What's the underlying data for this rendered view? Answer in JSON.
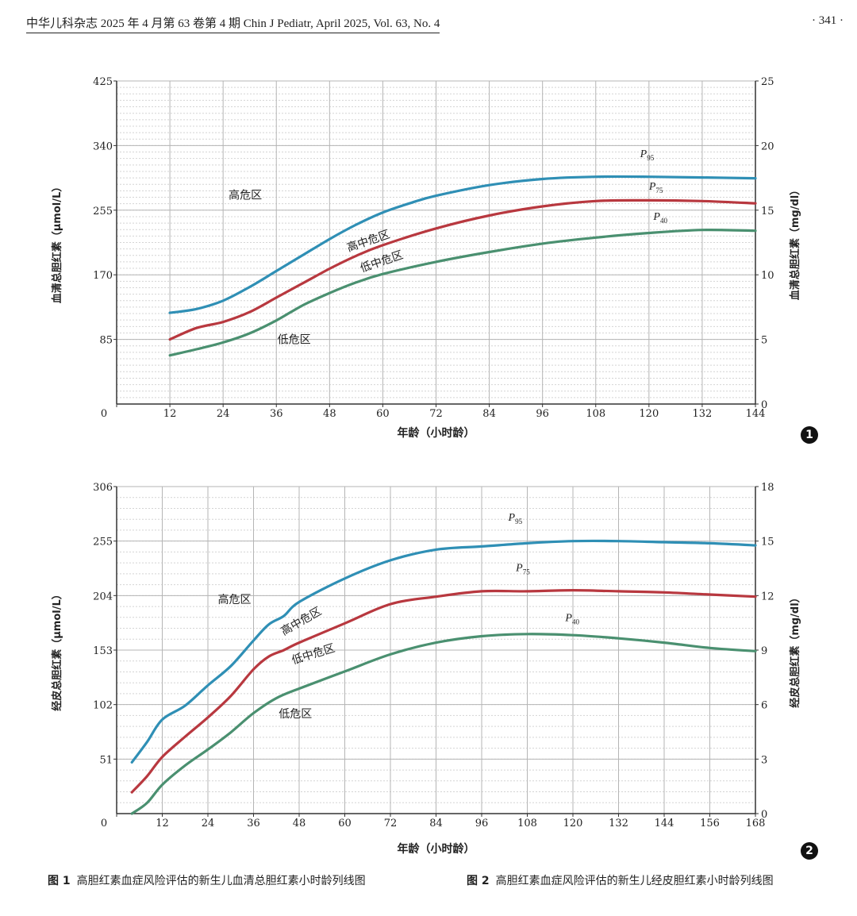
{
  "header": {
    "left": "中华儿科杂志 2025 年 4 月第 63 卷第 4 期   Chin J Pediatr, April 2025, Vol. 63, No. 4",
    "right": "· 341 ·"
  },
  "chart_data": [
    {
      "type": "line",
      "figure_label": "1",
      "xlabel": "年龄（小时龄）",
      "ylabel_left": "血清总胆红素（μmol/L）",
      "ylabel_right": "血清总胆红素（mg/dl）",
      "xlim": [
        0,
        144
      ],
      "ylim_left": [
        0,
        425
      ],
      "ylim_right": [
        0,
        25
      ],
      "x_ticks": [
        0,
        12,
        24,
        36,
        48,
        60,
        72,
        84,
        96,
        108,
        120,
        132,
        144
      ],
      "y_ticks_left": [
        85,
        170,
        255,
        340,
        425
      ],
      "y_ticks_right": [
        0,
        5,
        10,
        15,
        20,
        25
      ],
      "grid": true,
      "series": [
        {
          "name": "P95",
          "color": "#2f8fb5",
          "x": [
            12,
            18,
            24,
            30,
            36,
            42,
            48,
            54,
            60,
            66,
            72,
            84,
            96,
            108,
            120,
            132,
            144
          ],
          "y": [
            120,
            125,
            136,
            154,
            175,
            196,
            217,
            236,
            252,
            264,
            274,
            288,
            296,
            299,
            299,
            298,
            297
          ]
        },
        {
          "name": "P75",
          "color": "#b8383f",
          "x": [
            12,
            18,
            24,
            30,
            36,
            42,
            48,
            54,
            60,
            72,
            84,
            96,
            108,
            120,
            132,
            144
          ],
          "y": [
            85,
            100,
            108,
            121,
            140,
            159,
            178,
            195,
            209,
            231,
            248,
            260,
            267,
            268,
            267,
            264
          ]
        },
        {
          "name": "P40",
          "color": "#4a9070",
          "x": [
            12,
            18,
            24,
            30,
            36,
            42,
            48,
            54,
            60,
            72,
            84,
            96,
            108,
            120,
            132,
            144
          ],
          "y": [
            64,
            72,
            81,
            93,
            110,
            130,
            146,
            160,
            171,
            187,
            200,
            211,
            219,
            225,
            229,
            228
          ]
        }
      ],
      "series_labels": [
        {
          "base": "P",
          "sub": "95",
          "x": 118,
          "y": 325
        },
        {
          "base": "P",
          "sub": "75",
          "x": 120,
          "y": 282
        },
        {
          "base": "P",
          "sub": "40",
          "x": 121,
          "y": 242
        }
      ],
      "zone_labels": [
        {
          "text": "高危区",
          "x": 29,
          "y": 270,
          "rotate": 0
        },
        {
          "text": "高中危区",
          "x": 57,
          "y": 210,
          "rotate": -19
        },
        {
          "text": "低中危区",
          "x": 60,
          "y": 183,
          "rotate": -19
        },
        {
          "text": "低危区",
          "x": 40,
          "y": 80,
          "rotate": 0
        }
      ]
    },
    {
      "type": "line",
      "figure_label": "2",
      "xlabel": "年龄（小时龄）",
      "ylabel_left": "经皮总胆红素（μmol/L）",
      "ylabel_right": "经皮总胆红素（mg/dl）",
      "xlim": [
        0,
        168
      ],
      "ylim_left": [
        0,
        306
      ],
      "ylim_right": [
        0,
        18
      ],
      "x_ticks": [
        0,
        12,
        24,
        36,
        48,
        60,
        72,
        84,
        96,
        108,
        120,
        132,
        144,
        156,
        168
      ],
      "y_ticks_left": [
        51,
        102,
        153,
        204,
        255,
        306
      ],
      "y_ticks_right": [
        0,
        3,
        6,
        9,
        12,
        15,
        18
      ],
      "grid": true,
      "series": [
        {
          "name": "P95",
          "color": "#2f8fb5",
          "x": [
            4,
            8,
            12,
            18,
            24,
            30,
            36,
            40,
            44,
            48,
            60,
            72,
            84,
            96,
            108,
            120,
            132,
            144,
            156,
            168
          ],
          "y": [
            48,
            67,
            88,
            101,
            120,
            138,
            162,
            177,
            185,
            198,
            220,
            237,
            247,
            250,
            253,
            255,
            255,
            254,
            253,
            251
          ]
        },
        {
          "name": "P75",
          "color": "#b8383f",
          "x": [
            4,
            8,
            12,
            18,
            24,
            30,
            36,
            40,
            44,
            48,
            60,
            72,
            84,
            96,
            108,
            120,
            132,
            144,
            156,
            168
          ],
          "y": [
            20,
            35,
            53,
            72,
            90,
            110,
            135,
            147,
            153,
            160,
            178,
            196,
            203,
            208,
            208,
            209,
            208,
            207,
            205,
            203
          ]
        },
        {
          "name": "P40",
          "color": "#4a9070",
          "x": [
            4,
            8,
            12,
            18,
            24,
            30,
            36,
            42,
            48,
            60,
            72,
            84,
            96,
            108,
            120,
            132,
            144,
            156,
            168
          ],
          "y": [
            0,
            10,
            27,
            45,
            60,
            76,
            94,
            108,
            117,
            133,
            149,
            160,
            166,
            168,
            167,
            164,
            160,
            155,
            152
          ]
        }
      ],
      "series_labels": [
        {
          "base": "P",
          "sub": "95",
          "x": 103,
          "y": 274
        },
        {
          "base": "P",
          "sub": "75",
          "x": 105,
          "y": 227
        },
        {
          "base": "P",
          "sub": "40",
          "x": 118,
          "y": 180
        }
      ],
      "zone_labels": [
        {
          "text": "高危区",
          "x": 31,
          "y": 197,
          "rotate": 0
        },
        {
          "text": "高中危区",
          "x": 49,
          "y": 177,
          "rotate": -30
        },
        {
          "text": "低中危区",
          "x": 52,
          "y": 146,
          "rotate": -17
        },
        {
          "text": "低危区",
          "x": 47,
          "y": 90,
          "rotate": 0
        }
      ]
    }
  ],
  "captions": [
    {
      "label": "图 1",
      "text": "高胆红素血症风险评估的新生儿血清总胆红素小时龄列线图"
    },
    {
      "label": "图 2",
      "text": "高胆红素血症风险评估的新生儿经皮胆红素小时龄列线图"
    }
  ],
  "colors": {
    "grid_major": "#b5b5b5",
    "grid_minor": "#d4d4d4",
    "axis": "#333333"
  }
}
